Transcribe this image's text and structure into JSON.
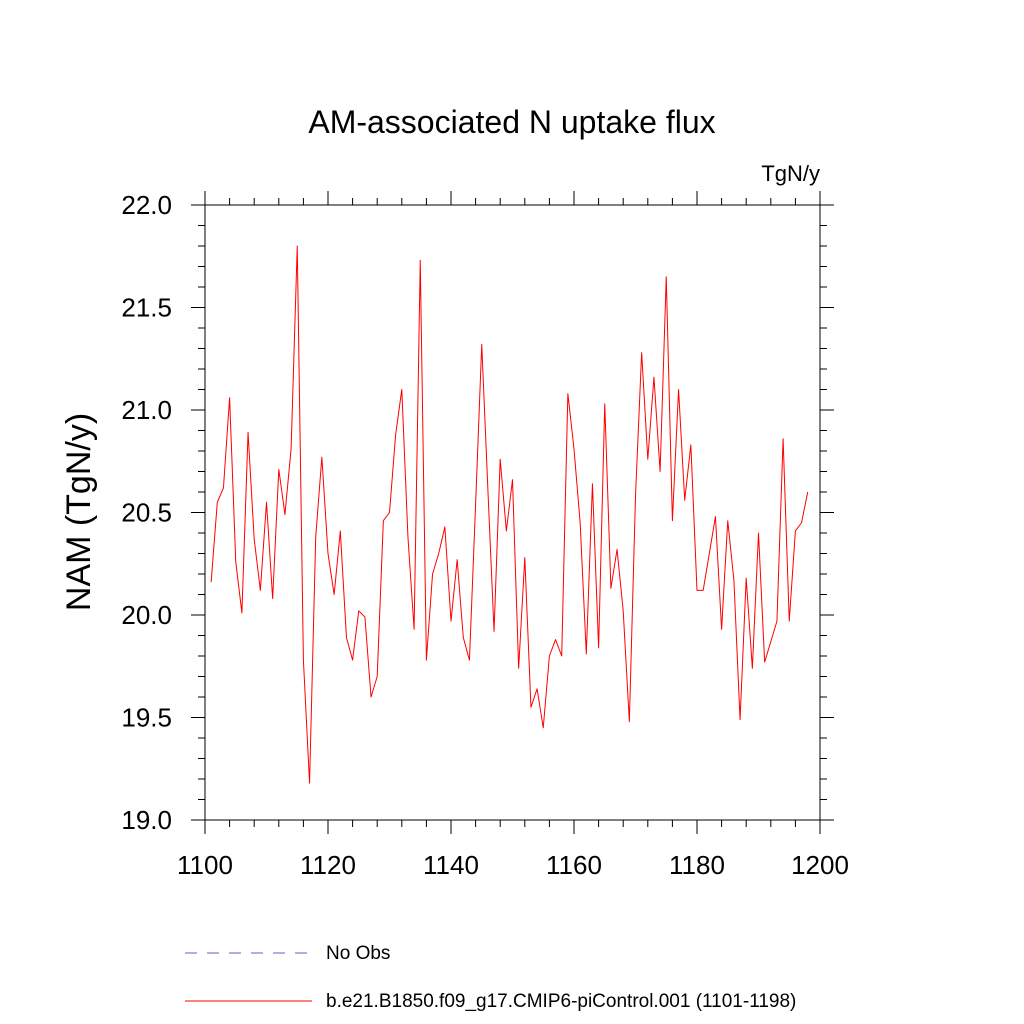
{
  "chart_data": {
    "type": "line",
    "title": "AM-associated N uptake flux",
    "units_label": "TgN/y",
    "ylabel": "NAM  (TgN/y)",
    "xlabel": "",
    "xlim": [
      1100,
      1200
    ],
    "ylim": [
      19.0,
      22.0
    ],
    "x_ticks": [
      1100,
      1120,
      1140,
      1160,
      1180,
      1200
    ],
    "x_tick_labels": [
      "1100",
      "1120",
      "1140",
      "1160",
      "1180",
      "1200"
    ],
    "y_ticks": [
      19.0,
      19.5,
      20.0,
      20.5,
      21.0,
      21.5,
      22.0
    ],
    "y_tick_labels": [
      "19.0",
      "19.5",
      "20.0",
      "20.5",
      "21.0",
      "21.5",
      "22.0"
    ],
    "x_minor_step": 4,
    "y_minor_step": 0.1,
    "grid": false,
    "legend": [
      {
        "label": "No Obs",
        "color": "#6a5acd",
        "style": "dashed"
      },
      {
        "label": "b.e21.B1850.f09_g17.CMIP6-piControl.001 (1101-1198)",
        "color": "#ff0000",
        "style": "solid"
      }
    ],
    "series": [
      {
        "name": "b.e21.B1850.f09_g17.CMIP6-piControl.001 (1101-1198)",
        "color": "#ff0000",
        "x_start": 1101,
        "x_step": 1,
        "values": [
          20.16,
          20.55,
          20.62,
          21.06,
          20.26,
          20.01,
          20.89,
          20.37,
          20.12,
          20.55,
          20.08,
          20.71,
          20.49,
          20.81,
          21.8,
          19.78,
          19.18,
          20.38,
          20.77,
          20.3,
          20.1,
          20.41,
          19.89,
          19.78,
          20.02,
          19.99,
          19.6,
          19.7,
          20.46,
          20.5,
          20.88,
          21.1,
          20.38,
          19.93,
          21.73,
          19.78,
          20.2,
          20.3,
          20.43,
          19.97,
          20.27,
          19.89,
          19.78,
          20.54,
          21.32,
          20.61,
          19.92,
          20.76,
          20.41,
          20.66,
          19.74,
          20.28,
          19.55,
          19.64,
          19.45,
          19.8,
          19.88,
          19.8,
          21.08,
          20.81,
          20.45,
          19.81,
          20.64,
          19.84,
          21.03,
          20.13,
          20.32,
          20.02,
          19.48,
          20.58,
          21.28,
          20.76,
          21.16,
          20.7,
          21.65,
          20.46,
          21.1,
          20.56,
          20.83,
          20.12,
          20.12,
          20.3,
          20.48,
          19.93,
          20.46,
          20.17,
          19.49,
          20.18,
          19.74,
          20.4,
          19.77,
          19.87,
          19.97,
          20.86,
          19.97,
          20.41,
          20.45,
          20.6
        ]
      }
    ]
  }
}
